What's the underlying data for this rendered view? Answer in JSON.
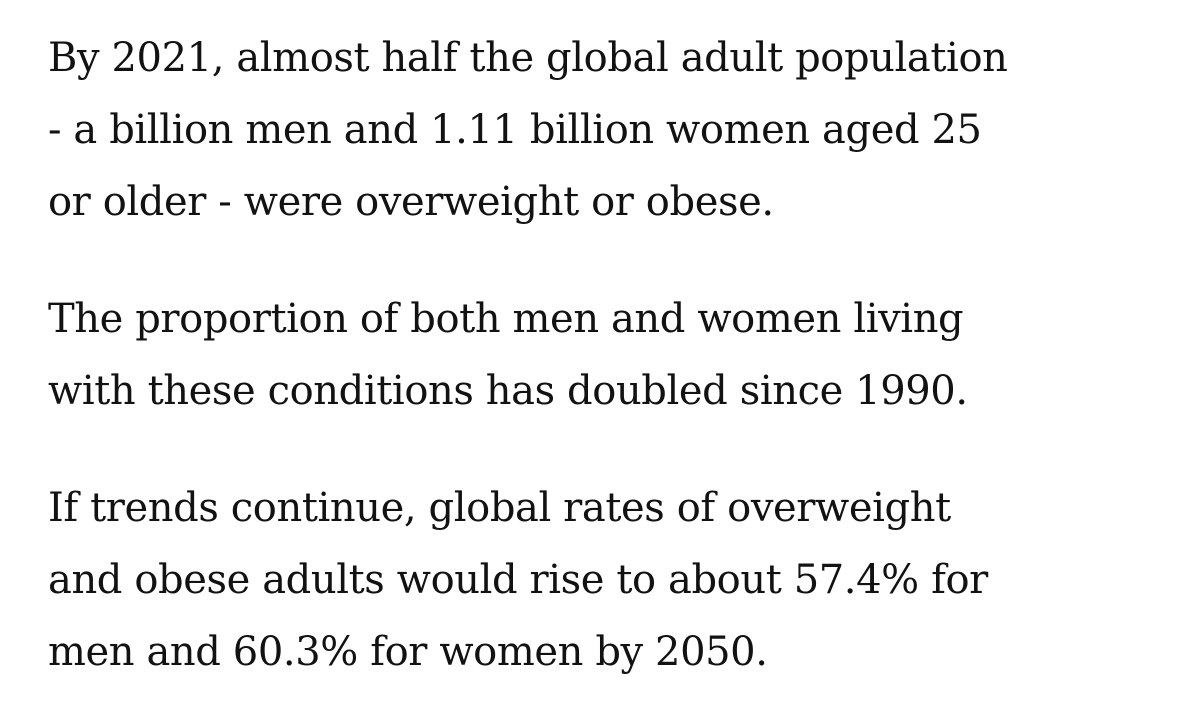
{
  "article": {
    "paragraphs": [
      "By 2021, almost half the global adult population\n- a billion men and 1.11 billion women aged 25\nor older - were overweight or obese.",
      "The proportion of both men and women living\nwith these conditions has doubled since 1990.",
      "If trends continue, global rates of overweight\nand obese adults would rise to about 57.4% for\nmen and 60.3% for women by 2050."
    ]
  }
}
